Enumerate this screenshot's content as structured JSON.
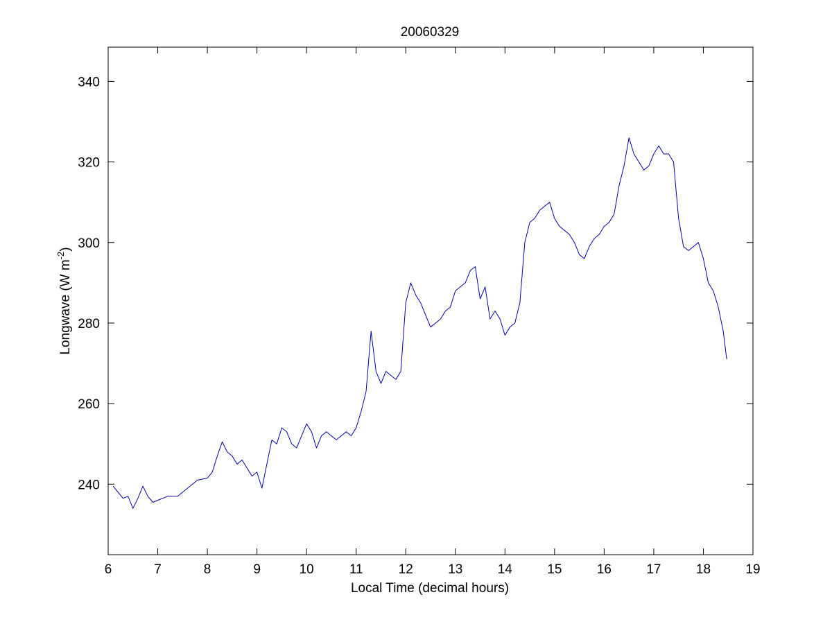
{
  "figure": {
    "background": "#ffffff"
  },
  "chart_data": {
    "type": "line",
    "title": "20060329",
    "xlabel": "Local Time (decimal hours)",
    "ylabel": "Longwave (W m",
    "ylabel_superscript": "-2",
    "ylabel_suffix": ")",
    "xlim": [
      6,
      19
    ],
    "ylim": [
      222.5,
      348.5
    ],
    "xticks": [
      6,
      7,
      8,
      9,
      10,
      11,
      12,
      13,
      14,
      15,
      16,
      17,
      18,
      19
    ],
    "yticks": [
      240,
      260,
      280,
      300,
      320,
      340
    ],
    "grid": false,
    "legend": "none",
    "line_color": "#0000aa",
    "series": [
      {
        "x": [
          6.1,
          6.2,
          6.3,
          6.4,
          6.5,
          6.6,
          6.7,
          6.8,
          6.9,
          7.0,
          7.2,
          7.4,
          7.6,
          7.8,
          8.0,
          8.1,
          8.2,
          8.3,
          8.4,
          8.5,
          8.6,
          8.7,
          8.8,
          8.9,
          9.0,
          9.1,
          9.2,
          9.3,
          9.4,
          9.5,
          9.6,
          9.7,
          9.8,
          9.9,
          10.0,
          10.1,
          10.2,
          10.3,
          10.4,
          10.5,
          10.6,
          10.7,
          10.8,
          10.9,
          11.0,
          11.1,
          11.2,
          11.3,
          11.4,
          11.5,
          11.6,
          11.7,
          11.8,
          11.9,
          12.0,
          12.1,
          12.2,
          12.3,
          12.4,
          12.5,
          12.6,
          12.7,
          12.8,
          12.9,
          13.0,
          13.1,
          13.2,
          13.3,
          13.4,
          13.5,
          13.6,
          13.7,
          13.8,
          13.9,
          14.0,
          14.1,
          14.2,
          14.3,
          14.4,
          14.5,
          14.6,
          14.7,
          14.8,
          14.9,
          15.0,
          15.1,
          15.2,
          15.3,
          15.4,
          15.5,
          15.6,
          15.7,
          15.8,
          15.9,
          16.0,
          16.1,
          16.2,
          16.3,
          16.4,
          16.5,
          16.6,
          16.7,
          16.8,
          16.9,
          17.0,
          17.1,
          17.2,
          17.3,
          17.4,
          17.5,
          17.6,
          17.7,
          17.8,
          17.9,
          18.0,
          18.1,
          18.2,
          18.3,
          18.4,
          18.47
        ],
        "values": [
          239.5,
          238,
          236.5,
          237,
          234,
          236.5,
          239.5,
          237,
          235.5,
          236,
          237,
          237,
          239,
          241,
          241.5,
          243,
          247,
          250.5,
          248,
          247,
          245,
          246,
          244,
          242,
          243,
          239,
          245,
          251,
          250,
          254,
          253,
          250,
          249,
          252,
          255,
          253,
          249,
          252,
          253,
          252,
          251,
          252,
          253,
          252,
          254,
          258,
          263,
          278,
          268,
          265,
          268,
          267,
          266,
          268,
          285,
          290,
          287,
          285,
          282,
          279,
          280,
          281,
          283,
          284,
          288,
          289,
          290,
          293,
          294,
          286,
          289,
          281,
          283,
          281,
          277,
          279,
          280,
          285,
          300,
          305,
          306,
          308,
          309,
          310,
          306,
          304,
          303,
          302,
          300,
          297,
          296,
          299,
          301,
          302,
          304,
          305,
          307,
          314,
          319,
          326,
          322,
          320,
          318,
          319,
          322,
          324,
          322,
          322,
          320,
          306,
          299,
          298,
          299,
          300,
          296,
          290,
          288,
          284,
          278,
          271
        ]
      }
    ]
  }
}
